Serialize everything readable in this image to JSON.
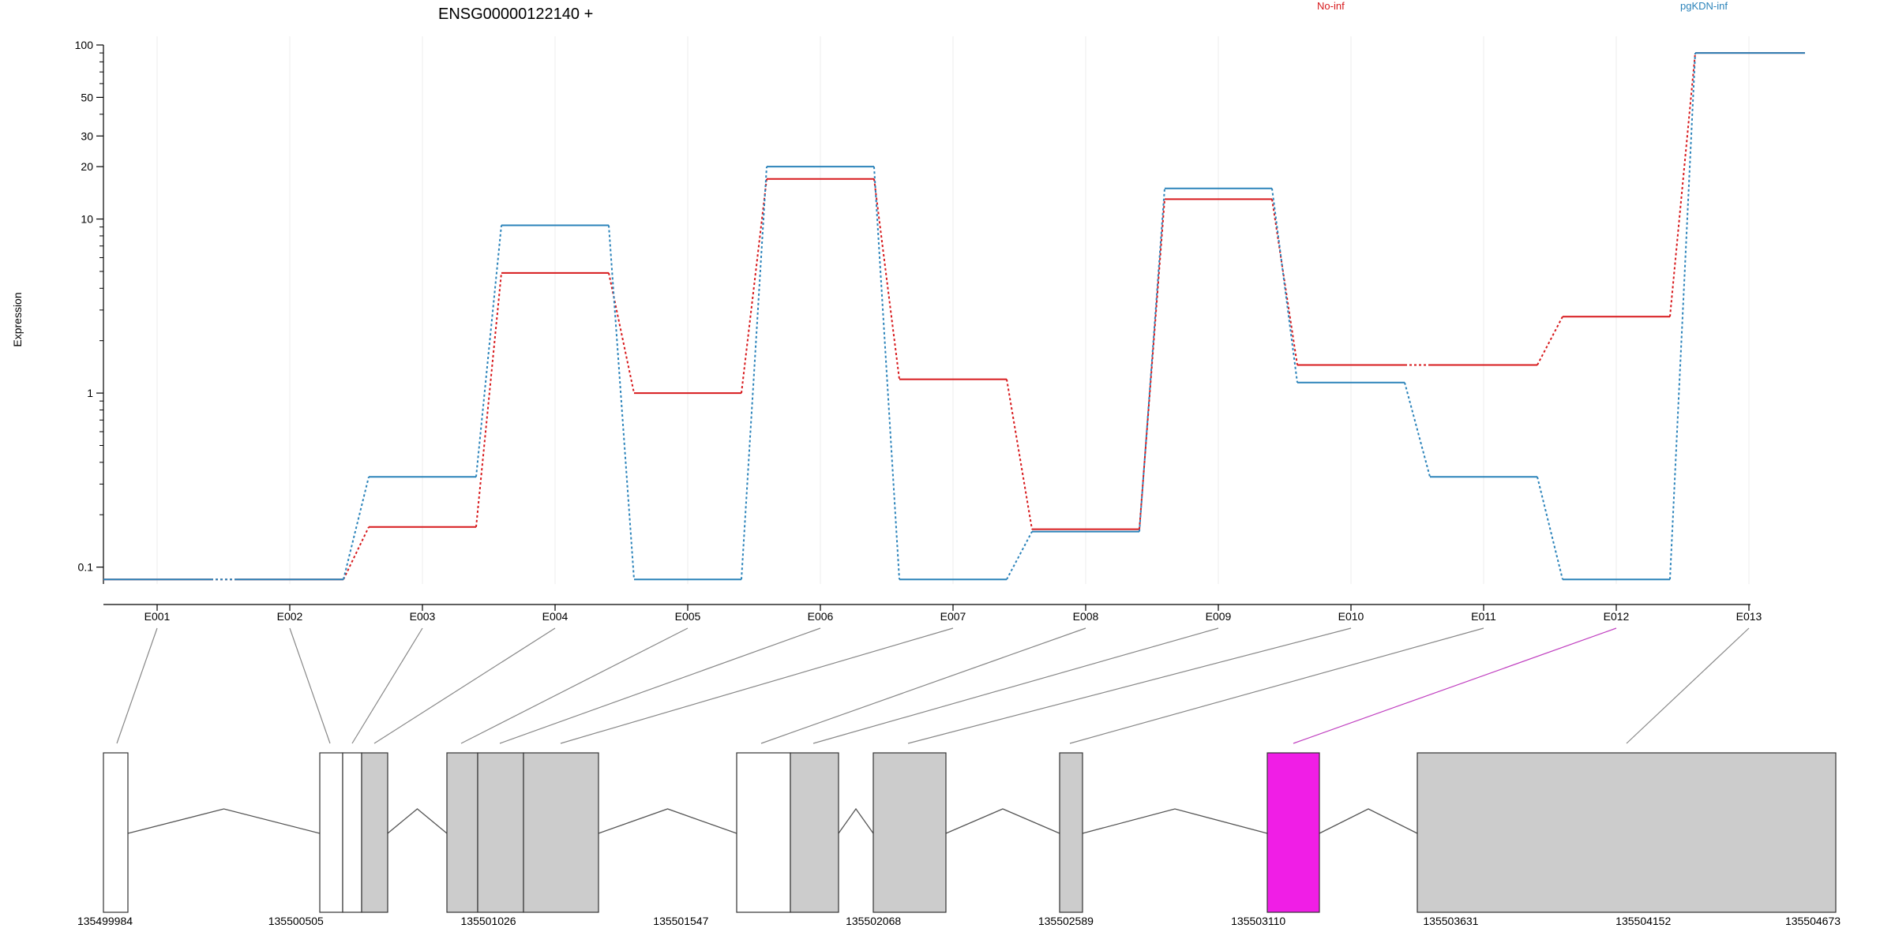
{
  "chart_data": {
    "type": "line",
    "title": "ENSG00000122140 +",
    "ylabel": "Expression",
    "yscale": "log",
    "ylim": [
      0.08,
      100
    ],
    "yticks": [
      "0.1",
      "1",
      "10",
      "20",
      "30",
      "50",
      "100"
    ],
    "categories": [
      "E001",
      "E002",
      "E003",
      "E004",
      "E005",
      "E006",
      "E007",
      "E008",
      "E009",
      "E010",
      "E011",
      "E012",
      "E013"
    ],
    "series": [
      {
        "name": "No-inf",
        "color": "#d7191c",
        "values": [
          0.085,
          0.085,
          0.17,
          4.9,
          1.0,
          17.0,
          1.2,
          0.165,
          13.0,
          1.45,
          1.45,
          2.75,
          90.0
        ]
      },
      {
        "name": "pgKDN-inf",
        "color": "#2b83ba",
        "values": [
          0.085,
          0.085,
          0.33,
          9.2,
          0.085,
          20.0,
          0.085,
          0.16,
          15.0,
          1.15,
          0.33,
          0.085,
          90.0
        ]
      }
    ],
    "highlight_exon": "E012",
    "highlight_color": "#f01ee6",
    "genomic_ticks": [
      "135499984",
      "135500505",
      "135501026",
      "135501547",
      "135502068",
      "135502589",
      "135503110",
      "135503631",
      "135504152",
      "135504673"
    ]
  }
}
